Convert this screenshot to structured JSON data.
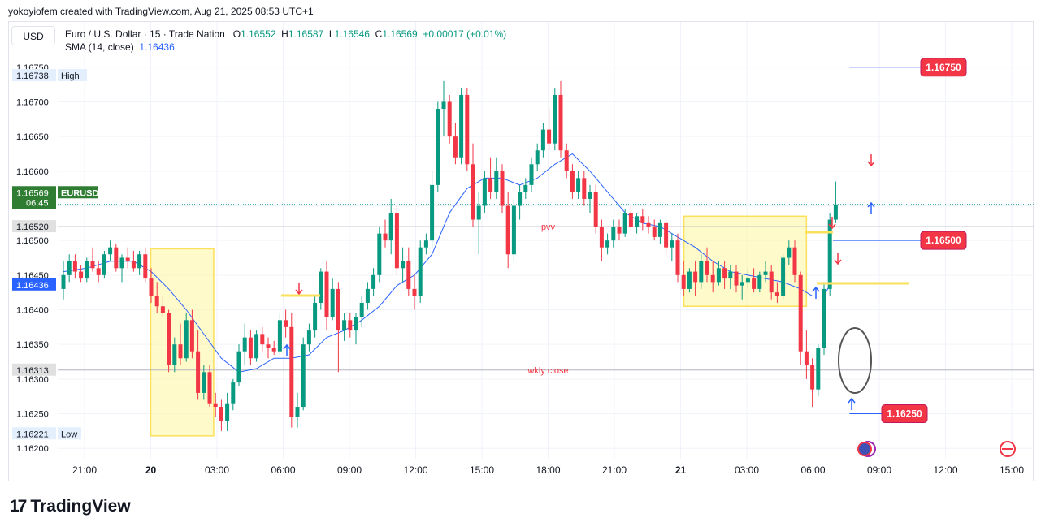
{
  "header": {
    "credit": "yokoyiofem created with TradingView.com, Aug 21, 2025 08:53 UTC+1"
  },
  "toolbar": {
    "currency": "USD"
  },
  "legend": {
    "symbol": "Euro / U.S. Dollar · 15 · Trade Nation",
    "o_label": "O",
    "o": "1.16552",
    "h_label": "H",
    "h": "1.16587",
    "l_label": "L",
    "l": "1.16546",
    "c_label": "C",
    "c": "1.16569",
    "change": "+0.00017 (+0.01%)",
    "sma_label": "SMA (14, close)",
    "sma_value": "1.16436"
  },
  "branding": {
    "logo_text": "TradingView",
    "logo_mark": "17"
  },
  "colors": {
    "up": "#089981",
    "down": "#f23645",
    "sma": "#2962ff",
    "zone_fill": "#fff59d",
    "zone_border": "#fbe05c",
    "label_red": "#f23645",
    "grid": "#f0f3fa",
    "axis_text": "#131722"
  },
  "chart_data": {
    "type": "candlestick",
    "y_range": [
      1.16185,
      1.16765
    ],
    "y_ticks": [
      "1.16750",
      "1.16700",
      "1.16650",
      "1.16600",
      "1.16550",
      "1.16500",
      "1.16450",
      "1.16400",
      "1.16350",
      "1.16300",
      "1.16250",
      "1.16200"
    ],
    "x_ticks": [
      {
        "label": "21:00",
        "t": 0
      },
      {
        "label": "20",
        "t": 1,
        "bold": true
      },
      {
        "label": "03:00",
        "t": 2
      },
      {
        "label": "06:00",
        "t": 3
      },
      {
        "label": "09:00",
        "t": 4
      },
      {
        "label": "12:00",
        "t": 5
      },
      {
        "label": "15:00",
        "t": 6
      },
      {
        "label": "18:00",
        "t": 7
      },
      {
        "label": "21:00",
        "t": 8
      },
      {
        "label": "21",
        "t": 9,
        "bold": true
      },
      {
        "label": "03:00",
        "t": 10
      },
      {
        "label": "06:00",
        "t": 11
      },
      {
        "label": "09:00",
        "t": 12
      },
      {
        "label": "12:00",
        "t": 13
      },
      {
        "label": "15:00",
        "t": 14
      }
    ],
    "price_badges": [
      {
        "name": "high-badge",
        "value": "1.16738",
        "tag": "High",
        "style": "light"
      },
      {
        "name": "last-price-badge",
        "value": "1.16569",
        "tag": "EURUSD",
        "sub": "06:45",
        "style": "green"
      },
      {
        "name": "pvv-badge",
        "value": "1.16520",
        "style": "grey"
      },
      {
        "name": "sma-badge",
        "value": "1.16436",
        "style": "blue"
      },
      {
        "name": "wkly-close-badge",
        "value": "1.16313",
        "style": "grey"
      },
      {
        "name": "low-badge",
        "value": "1.16221",
        "tag": "Low",
        "style": "light"
      }
    ],
    "horizontal_lines": [
      {
        "name": "pvv-line",
        "price": 1.1652,
        "label": "pvv",
        "label_t": 7.0
      },
      {
        "name": "wkly-close-line",
        "price": 1.16313,
        "label": "wkly close",
        "label_t": 7.0
      }
    ],
    "target_labels": [
      {
        "name": "target-1",
        "value": "1.16750",
        "price": 1.1675,
        "from_t": 11.55
      },
      {
        "name": "target-2",
        "value": "1.16500",
        "price": 1.165,
        "from_t": 11.3
      },
      {
        "name": "target-3",
        "value": "1.16250",
        "price": 1.1625,
        "from_t": 11.55
      }
    ],
    "zones": [
      {
        "t0": 1.0,
        "t1": 1.95,
        "p0": 1.16488,
        "p1": 1.16218
      },
      {
        "t0": 9.05,
        "t1": 10.9,
        "p0": 1.16535,
        "p1": 1.16405
      }
    ],
    "candles": [
      [
        1.1643,
        1.1647,
        1.16415,
        1.1645
      ],
      [
        1.1645,
        1.1648,
        1.1644,
        1.1647
      ],
      [
        1.1647,
        1.1648,
        1.16445,
        1.16455
      ],
      [
        1.16455,
        1.16465,
        1.1644,
        1.16445
      ],
      [
        1.16445,
        1.16475,
        1.1644,
        1.1647
      ],
      [
        1.1647,
        1.1649,
        1.16455,
        1.1646
      ],
      [
        1.1646,
        1.1647,
        1.1644,
        1.1645
      ],
      [
        1.1645,
        1.16485,
        1.16445,
        1.1648
      ],
      [
        1.1648,
        1.165,
        1.1647,
        1.1649
      ],
      [
        1.1649,
        1.16495,
        1.16455,
        1.1646
      ],
      [
        1.1646,
        1.1648,
        1.1644,
        1.16475
      ],
      [
        1.16475,
        1.1649,
        1.1646,
        1.1647
      ],
      [
        1.1647,
        1.16485,
        1.16455,
        1.1646
      ],
      [
        1.1646,
        1.16485,
        1.1645,
        1.1648
      ],
      [
        1.1648,
        1.1649,
        1.1644,
        1.16445
      ],
      [
        1.16445,
        1.1646,
        1.1641,
        1.1642
      ],
      [
        1.1642,
        1.1644,
        1.16395,
        1.16405
      ],
      [
        1.16405,
        1.1642,
        1.1639,
        1.16395
      ],
      [
        1.16395,
        1.164,
        1.1631,
        1.1632
      ],
      [
        1.1632,
        1.1636,
        1.1631,
        1.1635
      ],
      [
        1.1635,
        1.1638,
        1.1632,
        1.1633
      ],
      [
        1.1633,
        1.16395,
        1.16325,
        1.16385
      ],
      [
        1.16385,
        1.164,
        1.1633,
        1.1634
      ],
      [
        1.1634,
        1.1637,
        1.1627,
        1.1628
      ],
      [
        1.1628,
        1.1632,
        1.1627,
        1.1631
      ],
      [
        1.1631,
        1.1632,
        1.1626,
        1.16265
      ],
      [
        1.16265,
        1.1628,
        1.16245,
        1.1626
      ],
      [
        1.1626,
        1.1627,
        1.16225,
        1.1624
      ],
      [
        1.1624,
        1.1628,
        1.16225,
        1.16265
      ],
      [
        1.16265,
        1.163,
        1.16255,
        1.16295
      ],
      [
        1.16295,
        1.1635,
        1.1629,
        1.1634
      ],
      [
        1.1634,
        1.1638,
        1.1632,
        1.1636
      ],
      [
        1.1636,
        1.1637,
        1.1632,
        1.1633
      ],
      [
        1.1633,
        1.1637,
        1.16325,
        1.16365
      ],
      [
        1.16365,
        1.16375,
        1.1634,
        1.1635
      ],
      [
        1.1635,
        1.1636,
        1.1633,
        1.16345
      ],
      [
        1.16345,
        1.16355,
        1.16335,
        1.1634
      ],
      [
        1.1634,
        1.16395,
        1.16335,
        1.16385
      ],
      [
        1.16385,
        1.164,
        1.1636,
        1.16375
      ],
      [
        1.16375,
        1.16395,
        1.1623,
        1.16245
      ],
      [
        1.16245,
        1.1628,
        1.1623,
        1.1626
      ],
      [
        1.1626,
        1.1636,
        1.16255,
        1.1635
      ],
      [
        1.1635,
        1.1638,
        1.1634,
        1.1637
      ],
      [
        1.1637,
        1.1642,
        1.1636,
        1.1641
      ],
      [
        1.1641,
        1.1646,
        1.164,
        1.16455
      ],
      [
        1.16455,
        1.1647,
        1.1637,
        1.1639
      ],
      [
        1.1639,
        1.16445,
        1.16385,
        1.1643
      ],
      [
        1.1643,
        1.1644,
        1.1631,
        1.1637
      ],
      [
        1.1637,
        1.16395,
        1.16355,
        1.16385
      ],
      [
        1.16385,
        1.16395,
        1.1636,
        1.1637
      ],
      [
        1.1637,
        1.16395,
        1.1635,
        1.1639
      ],
      [
        1.1639,
        1.1642,
        1.16375,
        1.1641
      ],
      [
        1.1641,
        1.1644,
        1.164,
        1.1643
      ],
      [
        1.1643,
        1.1646,
        1.1642,
        1.1645
      ],
      [
        1.1645,
        1.1652,
        1.1644,
        1.1651
      ],
      [
        1.1651,
        1.1653,
        1.1649,
        1.165
      ],
      [
        1.165,
        1.1656,
        1.1648,
        1.1654
      ],
      [
        1.1654,
        1.1655,
        1.1645,
        1.1646
      ],
      [
        1.1646,
        1.1649,
        1.1644,
        1.1647
      ],
      [
        1.1647,
        1.1649,
        1.1642,
        1.1643
      ],
      [
        1.1643,
        1.1645,
        1.164,
        1.1642
      ],
      [
        1.1642,
        1.165,
        1.1641,
        1.1649
      ],
      [
        1.1649,
        1.1651,
        1.1648,
        1.165
      ],
      [
        1.165,
        1.166,
        1.1649,
        1.1658
      ],
      [
        1.1658,
        1.167,
        1.1657,
        1.1669
      ],
      [
        1.1669,
        1.1673,
        1.1665,
        1.167
      ],
      [
        1.167,
        1.1671,
        1.1664,
        1.1665
      ],
      [
        1.1665,
        1.1667,
        1.1661,
        1.1662
      ],
      [
        1.1662,
        1.1672,
        1.1661,
        1.1671
      ],
      [
        1.1671,
        1.1672,
        1.166,
        1.1661
      ],
      [
        1.1661,
        1.1664,
        1.1652,
        1.1653
      ],
      [
        1.1653,
        1.1657,
        1.1648,
        1.1655
      ],
      [
        1.1655,
        1.166,
        1.1654,
        1.1659
      ],
      [
        1.1659,
        1.1662,
        1.1656,
        1.1657
      ],
      [
        1.1657,
        1.1662,
        1.1656,
        1.166
      ],
      [
        1.166,
        1.1661,
        1.1654,
        1.1655
      ],
      [
        1.1655,
        1.1657,
        1.1646,
        1.1648
      ],
      [
        1.1648,
        1.1656,
        1.1647,
        1.1655
      ],
      [
        1.1655,
        1.1658,
        1.1653,
        1.1657
      ],
      [
        1.1657,
        1.1659,
        1.1656,
        1.1658
      ],
      [
        1.1658,
        1.1662,
        1.1657,
        1.1661
      ],
      [
        1.1661,
        1.1664,
        1.166,
        1.1663
      ],
      [
        1.1663,
        1.1667,
        1.1662,
        1.1666
      ],
      [
        1.1666,
        1.1669,
        1.1663,
        1.1664
      ],
      [
        1.1664,
        1.1672,
        1.1663,
        1.1671
      ],
      [
        1.1671,
        1.1673,
        1.1662,
        1.1663
      ],
      [
        1.1663,
        1.1664,
        1.1659,
        1.166
      ],
      [
        1.166,
        1.1661,
        1.1656,
        1.1657
      ],
      [
        1.1657,
        1.166,
        1.1656,
        1.1659
      ],
      [
        1.1659,
        1.166,
        1.1655,
        1.1656
      ],
      [
        1.1656,
        1.1658,
        1.1654,
        1.1657
      ],
      [
        1.1657,
        1.1658,
        1.1651,
        1.1652
      ],
      [
        1.1652,
        1.1653,
        1.1647,
        1.1649
      ],
      [
        1.1649,
        1.1651,
        1.1648,
        1.165
      ],
      [
        1.165,
        1.1653,
        1.1649,
        1.1652
      ],
      [
        1.1652,
        1.1653,
        1.165,
        1.1651
      ],
      [
        1.1651,
        1.16545,
        1.16505,
        1.1654
      ],
      [
        1.1654,
        1.1655,
        1.16515,
        1.1652
      ],
      [
        1.1652,
        1.1654,
        1.1651,
        1.16535
      ],
      [
        1.16535,
        1.16545,
        1.16515,
        1.16525
      ],
      [
        1.16525,
        1.16535,
        1.1651,
        1.1652
      ],
      [
        1.1652,
        1.1653,
        1.165,
        1.16505
      ],
      [
        1.16505,
        1.1653,
        1.16495,
        1.16525
      ],
      [
        1.16525,
        1.1653,
        1.1648,
        1.1649
      ],
      [
        1.1649,
        1.1651,
        1.1647,
        1.165
      ],
      [
        1.165,
        1.1651,
        1.1644,
        1.1645
      ],
      [
        1.1645,
        1.1647,
        1.1642,
        1.1643
      ],
      [
        1.1643,
        1.1646,
        1.16425,
        1.16455
      ],
      [
        1.16455,
        1.1647,
        1.1642,
        1.1644
      ],
      [
        1.1644,
        1.1648,
        1.1643,
        1.1647
      ],
      [
        1.1647,
        1.1649,
        1.1644,
        1.1645
      ],
      [
        1.1645,
        1.1647,
        1.16425,
        1.1644
      ],
      [
        1.1644,
        1.1647,
        1.16435,
        1.1646
      ],
      [
        1.1646,
        1.1647,
        1.1643,
        1.16445
      ],
      [
        1.16445,
        1.16465,
        1.1643,
        1.16455
      ],
      [
        1.16455,
        1.16465,
        1.16425,
        1.16435
      ],
      [
        1.16435,
        1.1645,
        1.16415,
        1.1644
      ],
      [
        1.1644,
        1.1646,
        1.1643,
        1.16445
      ],
      [
        1.16445,
        1.1646,
        1.16425,
        1.1643
      ],
      [
        1.1643,
        1.16455,
        1.16425,
        1.1645
      ],
      [
        1.1645,
        1.1647,
        1.1644,
        1.16455
      ],
      [
        1.16455,
        1.16465,
        1.16415,
        1.16425
      ],
      [
        1.16425,
        1.1644,
        1.1641,
        1.1642
      ],
      [
        1.1642,
        1.1648,
        1.16415,
        1.16475
      ],
      [
        1.16475,
        1.165,
        1.16465,
        1.1649
      ],
      [
        1.1649,
        1.165,
        1.1644,
        1.1645
      ],
      [
        1.1645,
        1.16455,
        1.1632,
        1.1634
      ],
      [
        1.1634,
        1.1637,
        1.163,
        1.1632
      ],
      [
        1.1632,
        1.1633,
        1.1626,
        1.16285
      ],
      [
        1.16285,
        1.1635,
        1.16275,
        1.16345
      ],
      [
        1.16345,
        1.1644,
        1.16335,
        1.1643
      ],
      [
        1.1643,
        1.1654,
        1.1642,
        1.1653
      ],
      [
        1.1653,
        1.16585,
        1.16525,
        1.16552
      ]
    ],
    "sma": [
      [
        0,
        1.16455
      ],
      [
        4,
        1.1646
      ],
      [
        8,
        1.1647
      ],
      [
        12,
        1.1647
      ],
      [
        15,
        1.16455
      ],
      [
        18,
        1.1643
      ],
      [
        21,
        1.164
      ],
      [
        24,
        1.16365
      ],
      [
        27,
        1.1633
      ],
      [
        30,
        1.1631
      ],
      [
        33,
        1.16315
      ],
      [
        36,
        1.1633
      ],
      [
        39,
        1.1633
      ],
      [
        42,
        1.16335
      ],
      [
        45,
        1.1636
      ],
      [
        48,
        1.1637
      ],
      [
        51,
        1.16385
      ],
      [
        54,
        1.16405
      ],
      [
        57,
        1.16435
      ],
      [
        60,
        1.1645
      ],
      [
        63,
        1.1648
      ],
      [
        66,
        1.1654
      ],
      [
        69,
        1.16575
      ],
      [
        72,
        1.1659
      ],
      [
        75,
        1.1659
      ],
      [
        78,
        1.1658
      ],
      [
        81,
        1.1659
      ],
      [
        84,
        1.1661
      ],
      [
        87,
        1.16625
      ],
      [
        90,
        1.166
      ],
      [
        93,
        1.1657
      ],
      [
        96,
        1.1654
      ],
      [
        99,
        1.16525
      ],
      [
        102,
        1.1652
      ],
      [
        105,
        1.16505
      ],
      [
        108,
        1.1649
      ],
      [
        111,
        1.1647
      ],
      [
        114,
        1.16455
      ],
      [
        117,
        1.1645
      ],
      [
        120,
        1.16445
      ],
      [
        123,
        1.1644
      ],
      [
        126,
        1.1643
      ],
      [
        128,
        1.1642
      ],
      [
        130,
        1.1642
      ],
      [
        131,
        1.16436
      ]
    ]
  }
}
